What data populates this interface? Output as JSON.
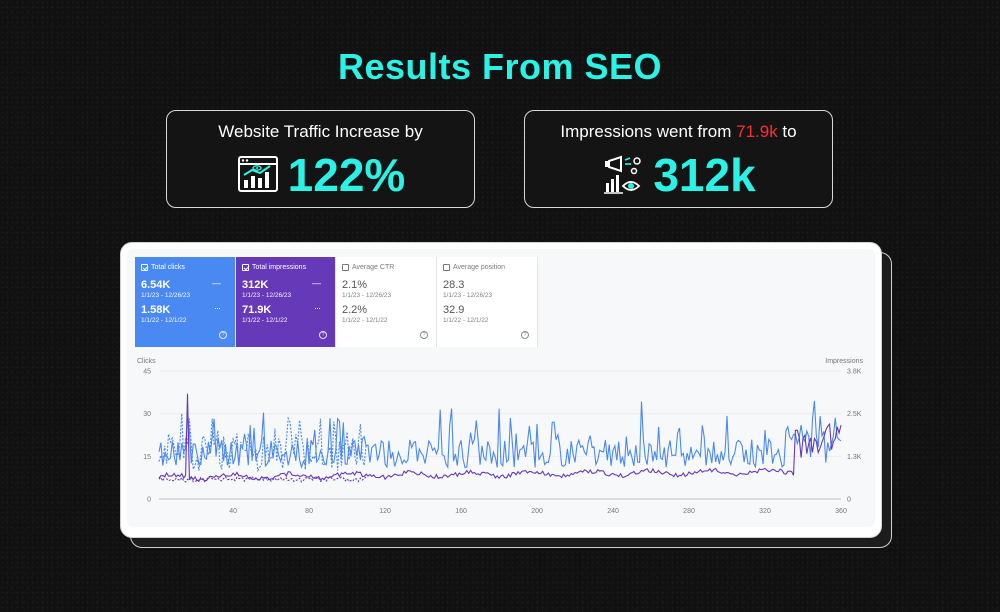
{
  "title": "Results From SEO",
  "traffic_card": {
    "caption": "Website Traffic Increase by",
    "value": "122%",
    "icon": "analytics-dashboard-icon"
  },
  "impressions_card": {
    "caption_prefix": "Impressions went from ",
    "caption_highlight": "71.9k",
    "caption_suffix": " to",
    "value": "312k",
    "icon": "megaphone-eye-icon",
    "highlight_color": "#ff2d2d"
  },
  "colors": {
    "accent": "#2af2e4",
    "clicks": "#4a89f2",
    "impressions": "#6639b8"
  },
  "metrics": {
    "clicks": {
      "label": "Total clicks",
      "current": "6.54K",
      "current_range": "1/1/23 - 12/26/23",
      "previous": "1.58K",
      "previous_range": "1/1/22 - 12/1/22"
    },
    "impressions": {
      "label": "Total impressions",
      "current": "312K",
      "current_range": "1/1/23 - 12/26/23",
      "previous": "71.9K",
      "previous_range": "1/1/22 - 12/1/22"
    },
    "ctr": {
      "label": "Average CTR",
      "current": "2.1%",
      "current_range": "1/1/23 - 12/26/23",
      "previous": "2.2%",
      "previous_range": "1/1/22 - 12/1/22"
    },
    "position": {
      "label": "Average position",
      "current": "28.3",
      "current_range": "1/1/23 - 12/26/23",
      "previous": "32.9",
      "previous_range": "1/1/22 - 12/1/22"
    },
    "help_glyph": "?"
  },
  "chart_data": {
    "type": "line",
    "ylabel_left": "Clicks",
    "ylabel_right": "Impressions",
    "x_ticks": [
      "40",
      "80",
      "120",
      "160",
      "200",
      "240",
      "280",
      "320",
      "360"
    ],
    "y_left_ticks": [
      "45",
      "30",
      "15",
      "0"
    ],
    "y_right_ticks": [
      "3.8K",
      "2.5K",
      "1.3K",
      "0"
    ],
    "xlim": [
      1,
      360
    ],
    "ylim_left": [
      0,
      45
    ],
    "ylim_right": [
      0,
      3800
    ],
    "grid": true
  }
}
